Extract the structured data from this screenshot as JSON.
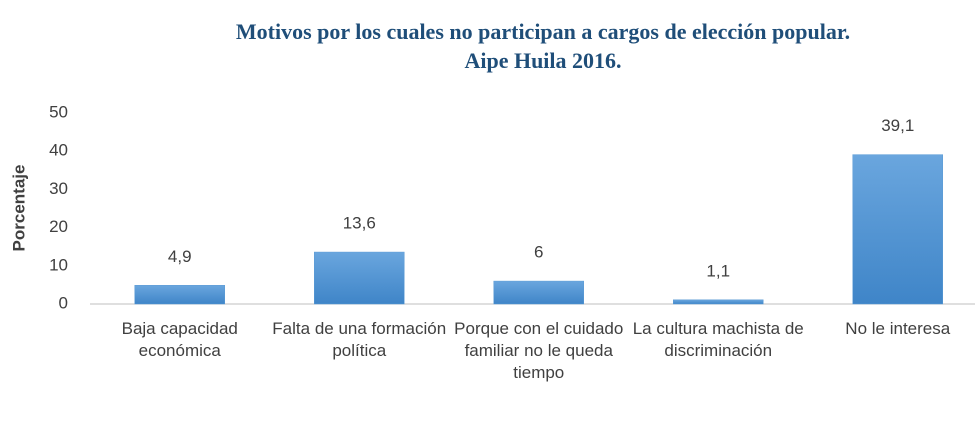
{
  "chart_data": {
    "type": "bar",
    "title": [
      "Motivos por los cuales no participan a cargos de elección popular.",
      "Aipe Huila 2016."
    ],
    "ylabel": "Porcentaje",
    "categories": [
      "Baja capacidad económica",
      "Falta de una formación política",
      "Porque con el cuidado familiar no le queda tiempo",
      "La cultura machista de discriminación",
      "No le interesa"
    ],
    "values": [
      4.9,
      13.6,
      6,
      1.1,
      39.1
    ],
    "value_labels": [
      "4,9",
      "13,6",
      "6",
      "1,1",
      "39,1"
    ],
    "color": "#5b9bd5",
    "ylim": [
      0,
      50
    ],
    "yticks": [
      0,
      10,
      20,
      30,
      40,
      50
    ],
    "grid": false
  }
}
